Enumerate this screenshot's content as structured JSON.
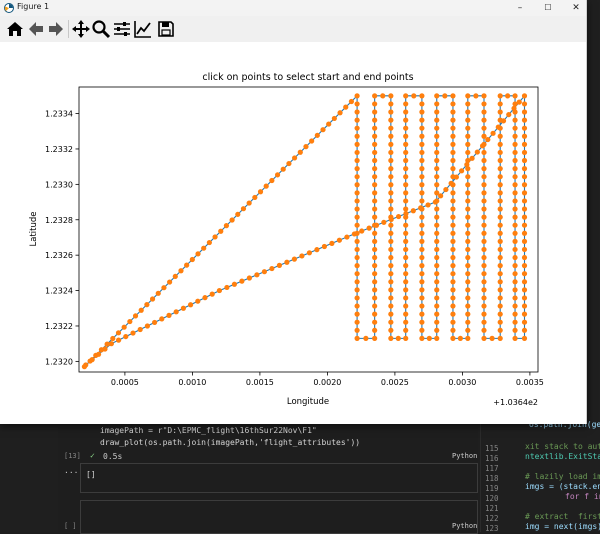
{
  "window": {
    "title": "Figure 1",
    "controls": {
      "minimize": "–",
      "maximize": "☐",
      "close": "✕"
    }
  },
  "toolbar": {
    "tools": [
      {
        "name": "home-icon"
      },
      {
        "name": "back-arrow-icon"
      },
      {
        "name": "forward-arrow-icon"
      },
      {
        "name": "pan-icon"
      },
      {
        "name": "zoom-icon"
      },
      {
        "name": "configure-subplots-icon"
      },
      {
        "name": "edit-axis-icon"
      },
      {
        "name": "save-icon"
      }
    ]
  },
  "editor": {
    "line_path": "imagePath = r\"D:\\EPMC_flight\\16thSur22Nov\\F1\"",
    "line_call": "draw_plot(os.path.join(imagePath,'flight_attributes'))",
    "cell_index": "[13]",
    "exec_time": "0.5s",
    "kernel": "Python",
    "output_text": "[]",
    "empty_cell_index": "[ ]",
    "empty_kernel": "Python",
    "right_lines": [
      {
        "num": "",
        "text": "os.path.join(ge"
      },
      {
        "num": "115",
        "text": "xit stack to autom"
      },
      {
        "num": "116",
        "text": "ntextlib.ExitStack"
      },
      {
        "num": "117",
        "text": ""
      },
      {
        "num": "118",
        "text": "# lazily load ima"
      },
      {
        "num": "119",
        "text": "imgs = (stack.ent"
      },
      {
        "num": "120",
        "text": "        for f in"
      },
      {
        "num": "121",
        "text": ""
      },
      {
        "num": "122",
        "text": "# extract  first"
      },
      {
        "num": "123",
        "text": "img = next(imgs)"
      }
    ],
    "right_line_0": "os.path.join(ge",
    "right_line_1": "xit stack to autom",
    "right_line_2": "ntextlib.ExitStack",
    "right_line_3": "# lazily load ima",
    "right_line_4": "imgs = (stack.ent",
    "right_line_5": "for f in",
    "right_line_6": "# extract  first",
    "right_line_7": "img = next(imgs)",
    "gutter_115": "115",
    "gutter_116": "116",
    "gutter_117": "117",
    "gutter_118": "118",
    "gutter_119": "119",
    "gutter_120": "120",
    "gutter_121": "121",
    "gutter_122": "122",
    "gutter_123": "123"
  },
  "colors": {
    "line": "#1f77b4",
    "marker": "#ff7f0e"
  },
  "chart_data": {
    "type": "line",
    "title": "click on points to select start and end points",
    "xlabel": "Longitude",
    "ylabel": "Latitude",
    "x_offset_label": "+1.0364e2",
    "xlim": [
      0.00016,
      0.00356
    ],
    "ylim": [
      1.23194,
      1.23355
    ],
    "x_ticks": [
      0.0005,
      0.001,
      0.0015,
      0.002,
      0.0025,
      0.003,
      0.0035
    ],
    "x_tick_labels": [
      "0.0005",
      "0.0010",
      "0.0015",
      "0.0020",
      "0.0025",
      "0.0030",
      "0.0035"
    ],
    "y_ticks": [
      1.232,
      1.2322,
      1.2324,
      1.2326,
      1.2328,
      1.233,
      1.2332,
      1.2334
    ],
    "y_tick_labels": [
      "1.2320",
      "1.2322",
      "1.2324",
      "1.2326",
      "1.2328",
      "1.2330",
      "1.2332",
      "1.2334"
    ],
    "grid": false,
    "series": [
      {
        "marker": "o",
        "waypoints": [
          [
            0.0002,
            1.23197
          ],
          [
            0.00222,
            1.2335
          ],
          [
            0.00222,
            1.23213
          ],
          [
            0.00235,
            1.23213
          ],
          [
            0.00235,
            1.2335
          ],
          [
            0.00247,
            1.2335
          ],
          [
            0.00247,
            1.23213
          ],
          [
            0.00258,
            1.23213
          ],
          [
            0.00258,
            1.2335
          ],
          [
            0.0027,
            1.2335
          ],
          [
            0.0027,
            1.23213
          ],
          [
            0.00281,
            1.23213
          ],
          [
            0.00281,
            1.2335
          ],
          [
            0.00293,
            1.2335
          ],
          [
            0.00293,
            1.23213
          ],
          [
            0.00304,
            1.23213
          ],
          [
            0.00304,
            1.2335
          ],
          [
            0.00316,
            1.2335
          ],
          [
            0.00316,
            1.23213
          ],
          [
            0.00328,
            1.23213
          ],
          [
            0.00328,
            1.2335
          ],
          [
            0.00339,
            1.2335
          ],
          [
            0.00339,
            1.23213
          ],
          [
            0.00346,
            1.23213
          ],
          [
            0.00346,
            1.2335
          ],
          [
            0.0028,
            1.2329
          ],
          [
            0.0022,
            1.23272
          ],
          [
            0.0012,
            1.2324
          ],
          [
            0.0004,
            1.2321
          ],
          [
            0.00021,
            1.23198
          ]
        ]
      }
    ]
  }
}
